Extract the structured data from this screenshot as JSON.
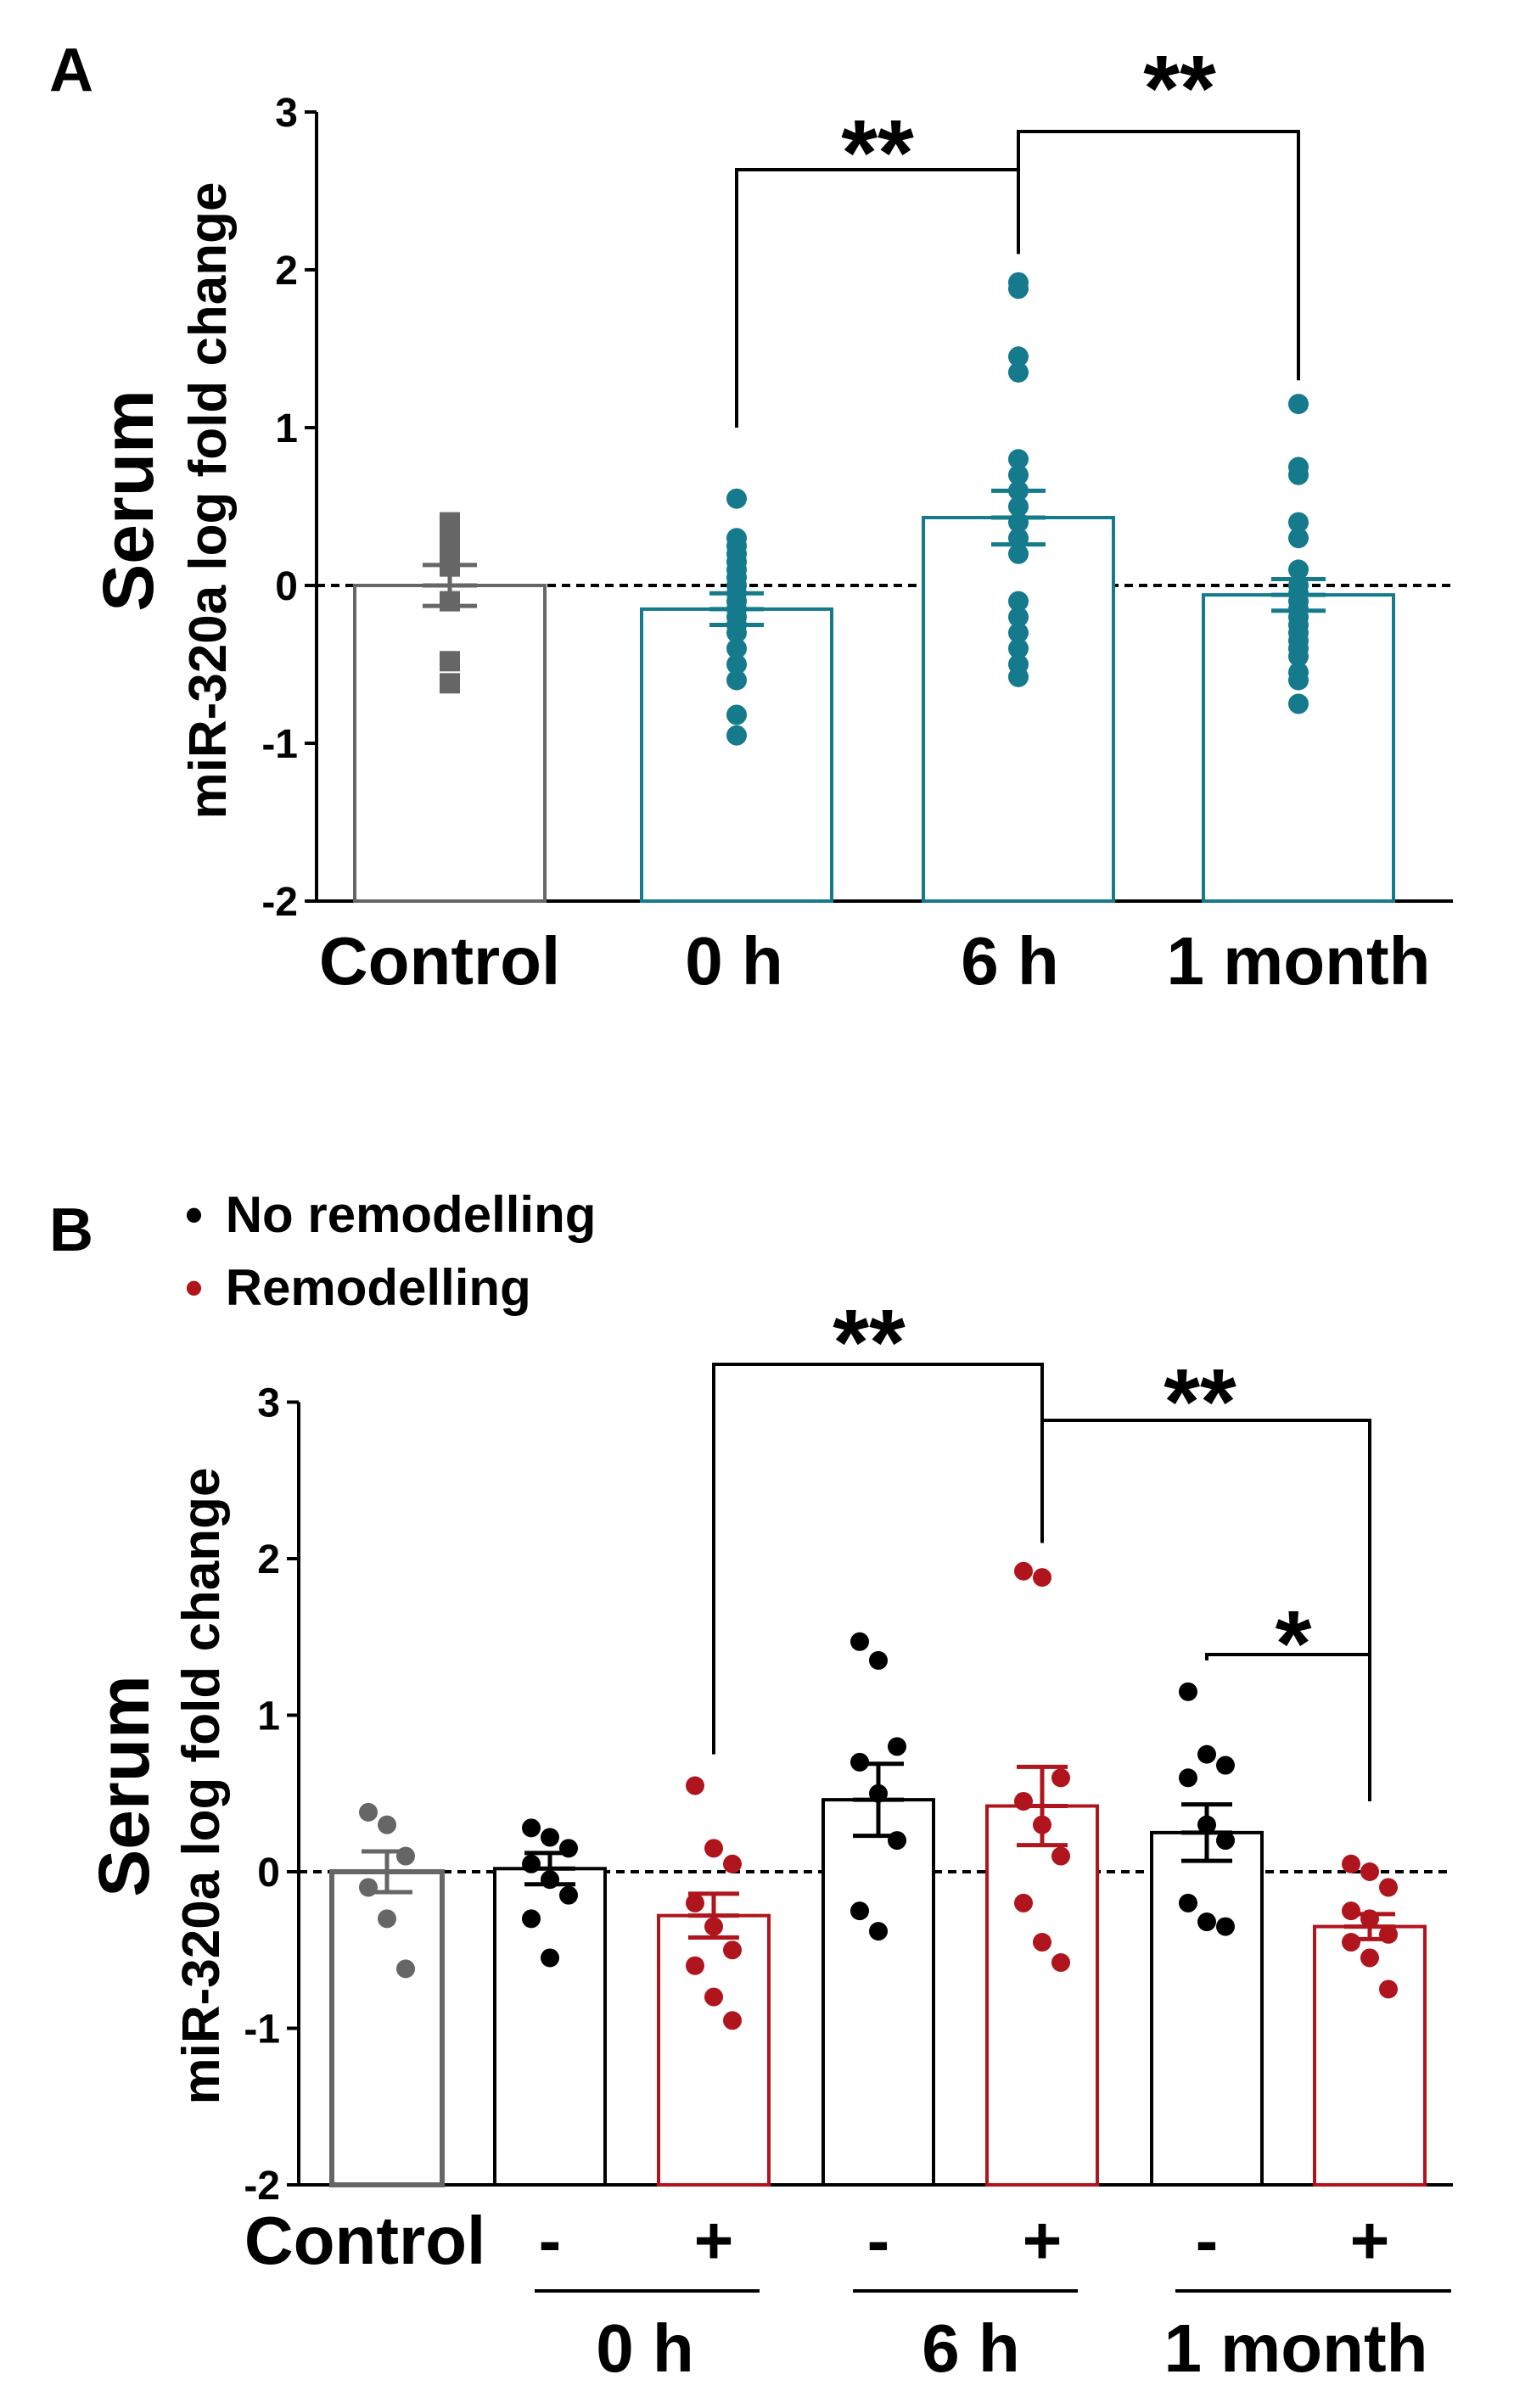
{
  "colors": {
    "control": "#666666",
    "teal": "#147a8c",
    "black": "#000000",
    "red": "#b0141c"
  },
  "chart_data": [
    {
      "panel": "A",
      "type": "bar",
      "ylabel": "Serum",
      "ylabel2": "miR-320a log fold change",
      "ylim": [
        -2,
        3
      ],
      "yticks": [
        3,
        2,
        1,
        0,
        -1,
        -2
      ],
      "reference_line": 0,
      "categories": [
        "Control",
        "0 h",
        "6 h",
        "1 month"
      ],
      "series": [
        {
          "name": "Control",
          "color": "control",
          "marker": "square",
          "mean": 0.0,
          "sem": 0.13,
          "points": [
            0.4,
            0.36,
            0.33,
            0.3,
            0.25,
            0.22,
            0.18,
            0.15,
            0.12,
            -0.1,
            -0.48,
            -0.62
          ]
        },
        {
          "name": "0 h",
          "color": "teal",
          "marker": "circle",
          "mean": -0.15,
          "sem": 0.1,
          "points": [
            0.55,
            0.3,
            0.25,
            0.2,
            0.15,
            0.1,
            0.05,
            0.0,
            -0.05,
            -0.1,
            -0.15,
            -0.2,
            -0.25,
            -0.3,
            -0.4,
            -0.5,
            -0.6,
            -0.82,
            -0.95
          ]
        },
        {
          "name": "6 h",
          "color": "teal",
          "marker": "circle",
          "mean": 0.43,
          "sem": 0.17,
          "points": [
            1.92,
            1.88,
            1.45,
            1.35,
            0.8,
            0.7,
            0.6,
            0.5,
            0.4,
            0.3,
            0.2,
            -0.1,
            -0.2,
            -0.3,
            -0.4,
            -0.5,
            -0.58
          ]
        },
        {
          "name": "1 month",
          "color": "teal",
          "marker": "circle",
          "mean": -0.06,
          "sem": 0.1,
          "points": [
            1.15,
            0.75,
            0.7,
            0.4,
            0.3,
            0.1,
            0.0,
            -0.05,
            -0.1,
            -0.15,
            -0.2,
            -0.25,
            -0.3,
            -0.35,
            -0.4,
            -0.45,
            -0.55,
            -0.6,
            -0.75
          ]
        }
      ],
      "significance": [
        {
          "from": "0 h",
          "to": "6 h",
          "label": "**"
        },
        {
          "from": "6 h",
          "to": "1 month",
          "label": "**"
        }
      ]
    },
    {
      "panel": "B",
      "type": "bar",
      "ylabel": "Serum",
      "ylabel2": "miR-320a log fold change",
      "ylim": [
        -2,
        3
      ],
      "yticks": [
        3,
        2,
        1,
        0,
        -1,
        -2
      ],
      "reference_line": 0,
      "legend": [
        {
          "bullet": "•",
          "label": "No remodelling",
          "color": "black"
        },
        {
          "bullet": "•",
          "label": "Remodelling",
          "color": "red"
        }
      ],
      "categories": [
        "Control",
        "-",
        "+",
        "-",
        "+",
        "-",
        "+"
      ],
      "groups": [
        "0 h",
        "6 h",
        "1 month"
      ],
      "series": [
        {
          "name": "Control",
          "color": "control",
          "mean": 0.0,
          "sem": 0.13,
          "points": [
            0.38,
            0.3,
            0.1,
            -0.1,
            -0.3,
            -0.62
          ]
        },
        {
          "name": "0 h -",
          "color": "black",
          "mean": 0.02,
          "sem": 0.1,
          "points": [
            0.28,
            0.22,
            0.15,
            0.05,
            -0.05,
            -0.15,
            -0.3,
            -0.55
          ]
        },
        {
          "name": "0 h +",
          "color": "red",
          "mean": -0.28,
          "sem": 0.14,
          "points": [
            0.55,
            0.15,
            0.05,
            -0.2,
            -0.35,
            -0.5,
            -0.6,
            -0.8,
            -0.95
          ]
        },
        {
          "name": "6 h -",
          "color": "black",
          "mean": 0.46,
          "sem": 0.23,
          "points": [
            1.47,
            1.35,
            0.8,
            0.7,
            0.5,
            0.2,
            -0.25,
            -0.38
          ]
        },
        {
          "name": "6 h +",
          "color": "red",
          "mean": 0.42,
          "sem": 0.25,
          "points": [
            1.92,
            1.88,
            0.6,
            0.45,
            0.3,
            0.1,
            -0.2,
            -0.45,
            -0.58
          ]
        },
        {
          "name": "1 month -",
          "color": "black",
          "mean": 0.25,
          "sem": 0.18,
          "points": [
            1.15,
            0.75,
            0.68,
            0.6,
            0.3,
            0.2,
            -0.2,
            -0.32,
            -0.35
          ]
        },
        {
          "name": "1 month +",
          "color": "red",
          "mean": -0.35,
          "sem": 0.08,
          "points": [
            0.05,
            0.0,
            -0.1,
            -0.25,
            -0.3,
            -0.4,
            -0.45,
            -0.55,
            -0.75
          ]
        }
      ],
      "significance": [
        {
          "from": "0 h +",
          "to": "6 h +",
          "label": "**"
        },
        {
          "from": "6 h +",
          "to": "1 month +",
          "label": "**"
        },
        {
          "from": "1 month -",
          "to": "1 month +",
          "label": "*"
        }
      ]
    }
  ]
}
